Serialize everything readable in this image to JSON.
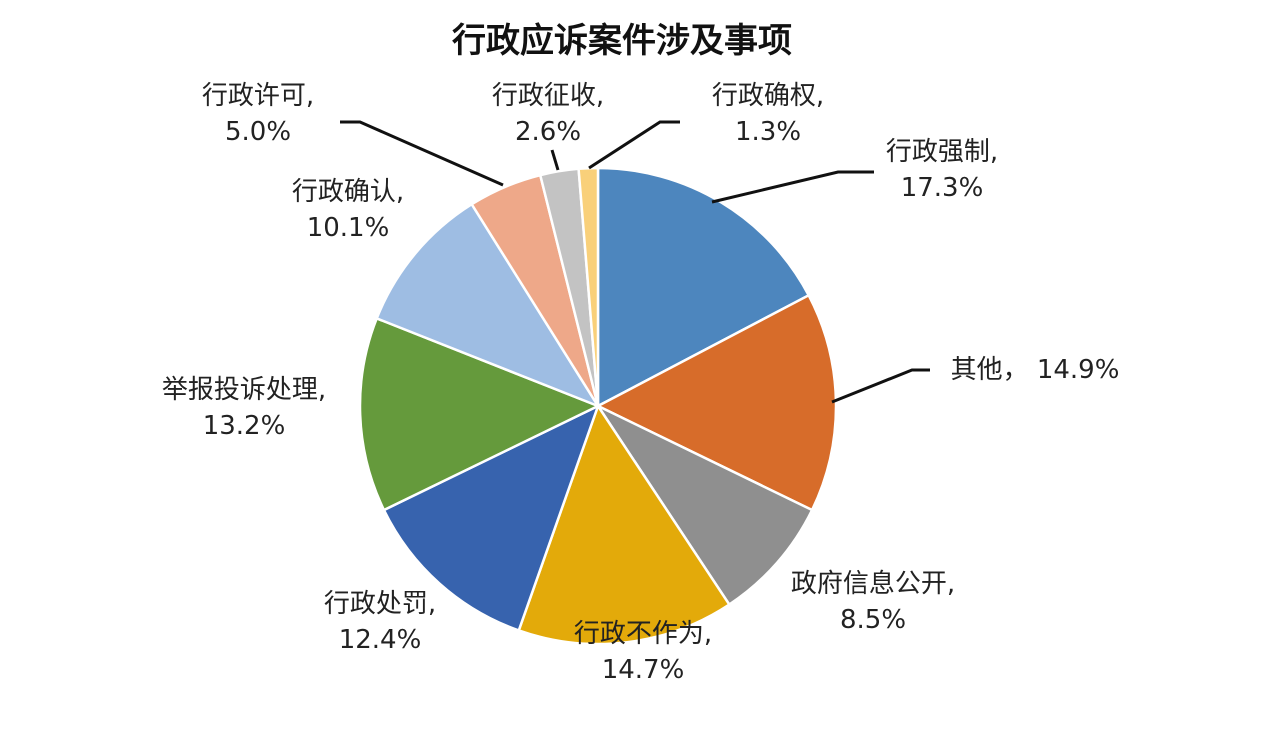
{
  "chart_data": {
    "type": "pie",
    "title": "行政应诉案件涉及事项",
    "start_angle_deg": 0,
    "direction": "clockwise",
    "slices": [
      {
        "name": "行政强制",
        "value": 17.3,
        "value_label": "17.3%",
        "color": "#4D86BE"
      },
      {
        "name": "其他",
        "value": 14.9,
        "value_label": "14.9%",
        "color": "#D76C2A"
      },
      {
        "name": "政府信息公开",
        "value": 8.5,
        "value_label": "8.5%",
        "color": "#8F8F8F"
      },
      {
        "name": "行政不作为",
        "value": 14.7,
        "value_label": "14.7%",
        "color": "#E3AA0A"
      },
      {
        "name": "行政处罚",
        "value": 12.4,
        "value_label": "12.4%",
        "color": "#3763AE"
      },
      {
        "name": "举报投诉处理",
        "value": 13.2,
        "value_label": "13.2%",
        "color": "#659A3C"
      },
      {
        "name": "行政确认",
        "value": 10.1,
        "value_label": "10.1%",
        "color": "#9EBDE3"
      },
      {
        "name": "行政许可",
        "value": 5.0,
        "value_label": "5.0%",
        "color": "#EEA889"
      },
      {
        "name": "行政征收",
        "value": 2.6,
        "value_label": "2.6%",
        "color": "#C3C3C3"
      },
      {
        "name": "行政确权",
        "value": 1.3,
        "value_label": "1.3%",
        "color": "#F9D07A"
      }
    ]
  }
}
